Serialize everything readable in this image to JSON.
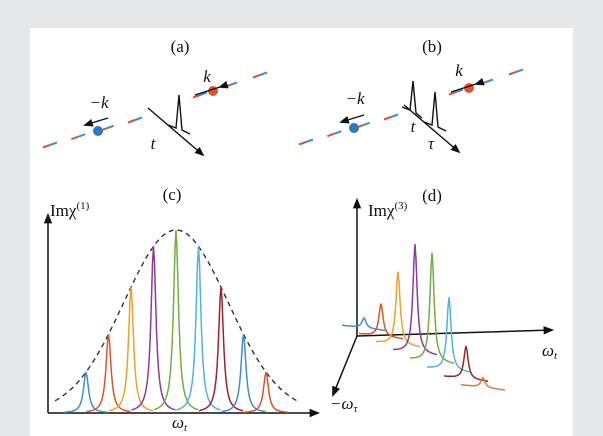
{
  "panels": [
    {
      "label": "(a)",
      "wavevector_right": "k",
      "wavevector_left": "−k",
      "time": "t"
    },
    {
      "label": "(b)",
      "wavevector_right": "k",
      "wavevector_left": "−k",
      "time": "t",
      "delay": "τ"
    },
    {
      "label": "(c)",
      "y_axis": {
        "base": "Imχ",
        "sup": "(1)"
      },
      "x_axis": {
        "base": "ω",
        "sub": "t"
      }
    },
    {
      "label": "(d)",
      "y_axis": {
        "base": "Imχ",
        "sup": "(3)"
      },
      "x_axis": {
        "base": "ω",
        "sub": "t"
      },
      "z_axis": {
        "base": "−ω",
        "sub": "τ"
      }
    }
  ]
}
